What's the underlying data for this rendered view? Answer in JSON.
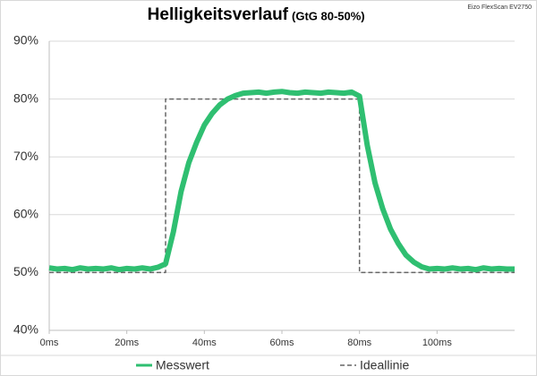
{
  "chart_data": {
    "type": "line",
    "title": "Helligkeitsverlauf",
    "subtitle": "(GtG 80-50%)",
    "annotation": "Eizo FlexScan EV2750",
    "xlim": [
      0,
      120
    ],
    "xticks": [
      {
        "value": 0,
        "label": "0ms"
      },
      {
        "value": 20,
        "label": "20ms"
      },
      {
        "value": 40,
        "label": "40ms"
      },
      {
        "value": 60,
        "label": "60ms"
      },
      {
        "value": 80,
        "label": "80ms"
      },
      {
        "value": 100,
        "label": "100ms"
      }
    ],
    "ylim": [
      40,
      90
    ],
    "yticks": [
      {
        "value": 40,
        "label": "40%"
      },
      {
        "value": 50,
        "label": "50%"
      },
      {
        "value": 60,
        "label": "60%"
      },
      {
        "value": 70,
        "label": "70%"
      },
      {
        "value": 80,
        "label": "80%"
      },
      {
        "value": 90,
        "label": "90%"
      }
    ],
    "grid": true,
    "legend": "bottom",
    "series": [
      {
        "name": "Messwert",
        "color": "#2fbf71",
        "dashed": false,
        "x": [
          0,
          2,
          4,
          6,
          8,
          10,
          12,
          14,
          16,
          18,
          20,
          22,
          24,
          26,
          28,
          30,
          32,
          34,
          36,
          38,
          40,
          42,
          44,
          46,
          48,
          50,
          52,
          54,
          56,
          58,
          60,
          62,
          64,
          66,
          68,
          70,
          72,
          74,
          76,
          78,
          80,
          82,
          84,
          86,
          88,
          90,
          92,
          94,
          96,
          98,
          100,
          102,
          104,
          106,
          108,
          110,
          112,
          114,
          116,
          118,
          120
        ],
        "values": [
          50.8,
          50.6,
          50.7,
          50.5,
          50.8,
          50.6,
          50.7,
          50.6,
          50.8,
          50.5,
          50.7,
          50.6,
          50.8,
          50.6,
          50.9,
          51.5,
          57,
          64,
          69,
          72.5,
          75.5,
          77.5,
          79,
          80,
          80.6,
          81,
          81.1,
          81.2,
          81,
          81.2,
          81.3,
          81.1,
          81,
          81.2,
          81.1,
          81,
          81.2,
          81.1,
          81,
          81.2,
          80.5,
          72,
          65.5,
          61,
          57.5,
          55,
          53,
          51.8,
          51,
          50.6,
          50.7,
          50.6,
          50.8,
          50.6,
          50.7,
          50.5,
          50.8,
          50.6,
          50.7,
          50.6,
          50.6
        ]
      },
      {
        "name": "Ideallinie",
        "color": "#666666",
        "dashed": true,
        "x": [
          0,
          30,
          30,
          80,
          80,
          120
        ],
        "values": [
          50,
          50,
          80,
          80,
          50,
          50
        ]
      }
    ]
  }
}
